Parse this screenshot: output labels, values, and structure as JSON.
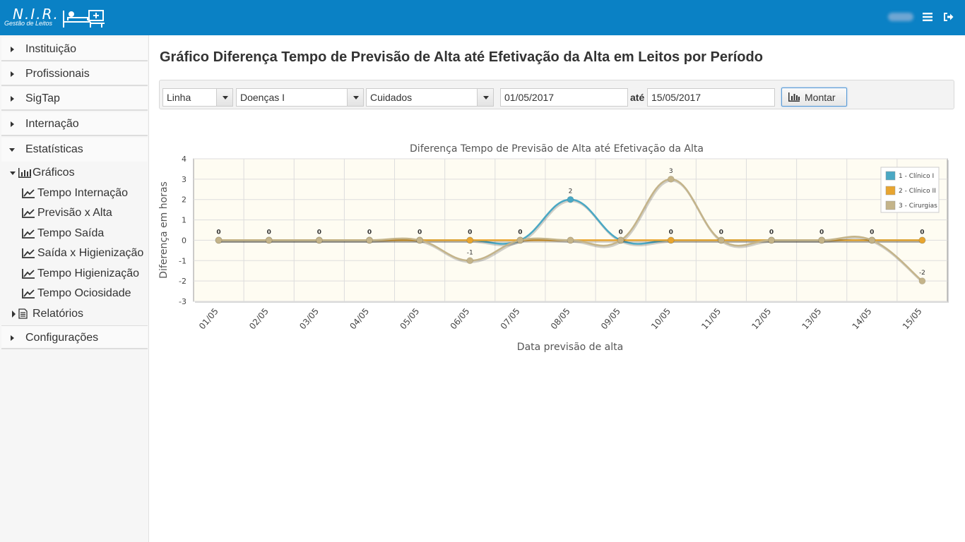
{
  "header": {
    "logo_title": "N.I.R.",
    "logo_subtitle": "Gestão de Leitos",
    "user_name": "daniel"
  },
  "sidebar": {
    "items": [
      {
        "label": "Instituição"
      },
      {
        "label": "Profissionais"
      },
      {
        "label": "SigTap"
      },
      {
        "label": "Internação"
      },
      {
        "label": "Estatísticas"
      }
    ],
    "graficos_label": "Gráficos",
    "graficos_items": [
      "Tempo Internação",
      "Previsão x Alta",
      "Tempo Saída",
      "Saída x Higienização",
      "Tempo Higienização",
      "Tempo Ociosidade"
    ],
    "relatorios_label": "Relatórios",
    "configuracoes_label": "Configurações"
  },
  "page": {
    "title": "Gráfico Diferença Tempo de Previsão de Alta até Efetivação da Alta em Leitos por Período"
  },
  "filters": {
    "chart_type": "Linha",
    "group": "Doenças I",
    "sector": "Cuidados",
    "date_from": "01/05/2017",
    "date_sep": "até",
    "date_to": "15/05/2017",
    "submit_label": "Montar"
  },
  "colors": {
    "header_bg": "#0a81c5",
    "series_1": "#4aa8c4",
    "series_2": "#e8a530",
    "series_3": "#c4b48a"
  },
  "chart_data": {
    "type": "line",
    "title": "Diferença Tempo de Previsão de Alta até Efetivação da Alta",
    "xlabel": "Data previsão de alta",
    "ylabel": "Diferença em horas",
    "ylim": [
      -3,
      4
    ],
    "yticks": [
      4,
      3,
      2,
      1,
      0,
      -1,
      -2,
      -3
    ],
    "categories": [
      "01/05",
      "02/05",
      "03/05",
      "04/05",
      "05/05",
      "06/05",
      "07/05",
      "08/05",
      "09/05",
      "10/05",
      "11/05",
      "12/05",
      "13/05",
      "14/05",
      "15/05"
    ],
    "legend_position": "top-right",
    "series": [
      {
        "name": "1 - Clínico I",
        "color": "#4aa8c4",
        "values": [
          0,
          0,
          0,
          0,
          0,
          0,
          0,
          2,
          0,
          0,
          0,
          0,
          0,
          0,
          0
        ]
      },
      {
        "name": "2 - Clínico II",
        "color": "#e8a530",
        "values": [
          0,
          0,
          0,
          0,
          0,
          0,
          0,
          0,
          0,
          0,
          0,
          0,
          0,
          0,
          0
        ]
      },
      {
        "name": "3 - Cirurgias",
        "color": "#c4b48a",
        "values": [
          0,
          0,
          0,
          0,
          0,
          -1,
          0,
          0,
          0,
          3,
          0,
          0,
          0,
          0,
          -2
        ]
      }
    ]
  }
}
